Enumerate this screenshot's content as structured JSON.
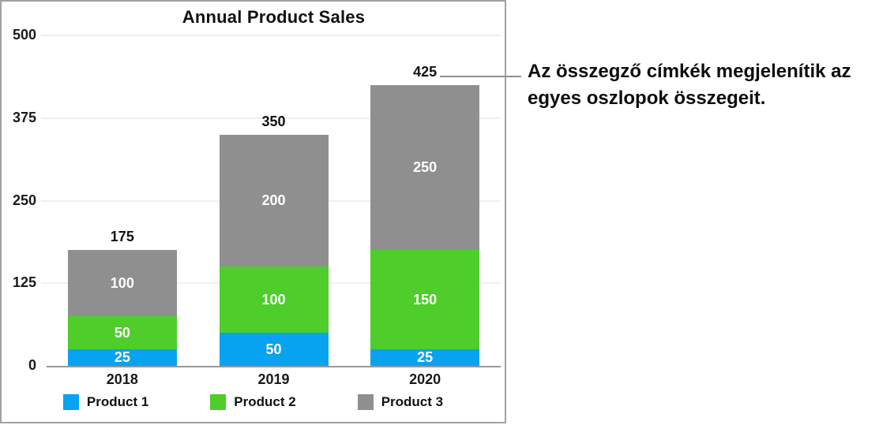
{
  "chart_data": {
    "type": "bar",
    "stacked": true,
    "title": "Annual Product Sales",
    "categories": [
      "2018",
      "2019",
      "2020"
    ],
    "series": [
      {
        "name": "Product 1",
        "color": "#08a3f0",
        "values": [
          25,
          50,
          25
        ]
      },
      {
        "name": "Product 2",
        "color": "#4ecd2b",
        "values": [
          50,
          100,
          150
        ]
      },
      {
        "name": "Product 3",
        "color": "#8f8f8f",
        "values": [
          100,
          200,
          250
        ]
      }
    ],
    "totals": [
      175,
      350,
      425
    ],
    "y_ticks": [
      500,
      375,
      250,
      125,
      0
    ],
    "ylim": [
      0,
      500
    ],
    "grid": true,
    "legend_position": "bottom",
    "segment_label_color": "#ffffff",
    "total_label_color": "#111111"
  },
  "callout": {
    "text": "Az összegző címkék megjelenítik az egyes oszlopok összegeit."
  }
}
